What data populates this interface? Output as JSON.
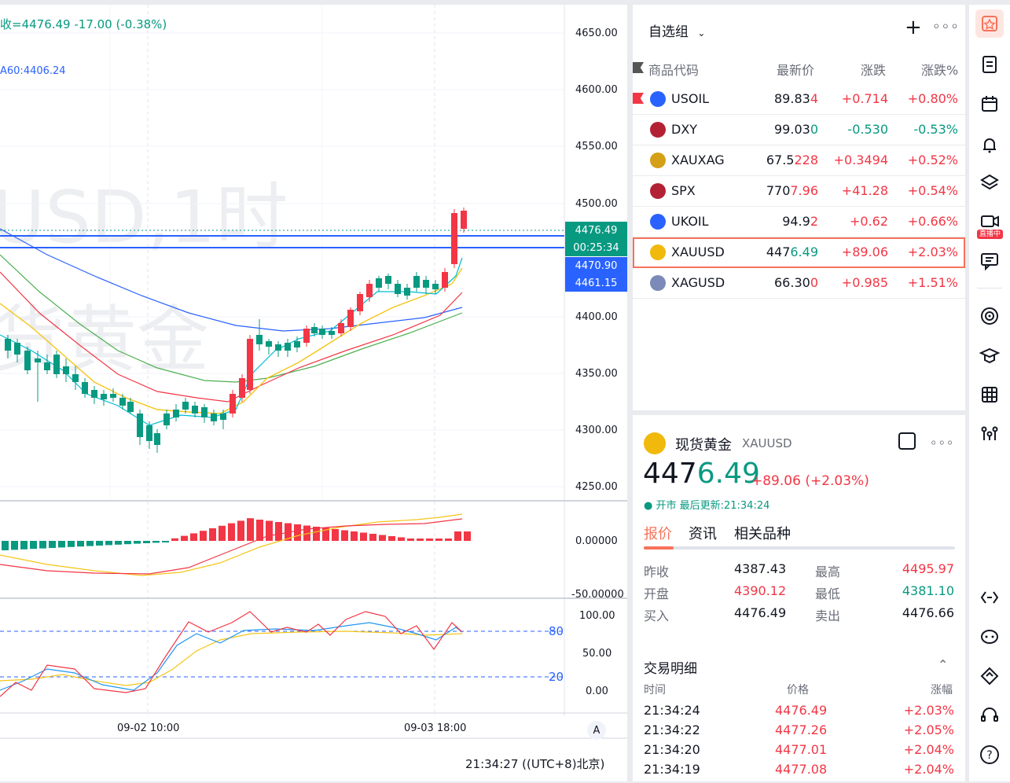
{
  "chart": {
    "legend_ohlc": "收=4476.49  -17.00 (-0.38%)",
    "legend_ma": "A60:4406.24",
    "watermark_line1": "USD,1时",
    "watermark_line2": "货黄金",
    "price_axis": [
      "4650.00",
      "4600.00",
      "4550.00",
      "4500.00",
      "4400.00",
      "4350.00",
      "4300.00",
      "4250.00"
    ],
    "tags": {
      "last": "4476.49",
      "countdown": "00:25:34",
      "line1": "4470.90",
      "line2": "4461.15"
    },
    "macd_axis": [
      "0.00000",
      "-50.00000"
    ],
    "kd_axis": [
      "100.00",
      "50.00",
      "0.00"
    ],
    "kd_levels": [
      "80",
      "20"
    ],
    "time_labels": [
      "09-02 10:00",
      "09-03 18:00"
    ],
    "auto_btn": "A",
    "clock": "21:34:27 ((UTC+8)北京)"
  },
  "watchlist": {
    "title": "自选组",
    "columns": [
      "商品代码",
      "最新价",
      "涨跌",
      "涨跌%"
    ],
    "rows": [
      {
        "symbol": "USOIL",
        "price_a": "89.83",
        "price_b": "4",
        "change": "+0.714",
        "pct": "+0.80%",
        "dir": "up",
        "icon": "#2962ff"
      },
      {
        "symbol": "DXY",
        "price_a": "99.03",
        "price_b": "0",
        "change": "-0.530",
        "pct": "-0.53%",
        "dir": "dn",
        "icon": "#b22234"
      },
      {
        "symbol": "XAUXAG",
        "price_a": "67.5",
        "price_b": "228",
        "change": "+0.3494",
        "pct": "+0.52%",
        "dir": "up",
        "icon": "#d4a017"
      },
      {
        "symbol": "SPX",
        "price_a": "770",
        "price_b": "7.96",
        "change": "+41.28",
        "pct": "+0.54%",
        "dir": "up",
        "icon": "#b22234"
      },
      {
        "symbol": "UKOIL",
        "price_a": "94.9",
        "price_b": "2",
        "change": "+0.62",
        "pct": "+0.66%",
        "dir": "up",
        "icon": "#2962ff"
      },
      {
        "symbol": "XAUUSD",
        "price_a": "447",
        "price_b": "6.49",
        "change": "+89.06",
        "pct": "+2.03%",
        "dir": "up",
        "icon": "#f0b90b"
      },
      {
        "symbol": "XAGUSD",
        "price_a": "66.30",
        "price_b": "0",
        "change": "+0.985",
        "pct": "+1.51%",
        "dir": "up",
        "icon": "#7b8ab8"
      }
    ]
  },
  "details": {
    "name": "现货黄金",
    "symbol": "XAUUSD",
    "price_a": "447",
    "price_b": "6.49",
    "change": "+89.06 (+2.03%)",
    "status": "● 开市 最后更新:21:34:24",
    "tabs": [
      "报价",
      "资讯",
      "相关品种"
    ],
    "stats": [
      {
        "l": "昨收",
        "v": "4387.43",
        "c": "#131722",
        "l2": "最高",
        "v2": "4495.97",
        "c2": "#f23645"
      },
      {
        "l": "开盘",
        "v": "4390.12",
        "c": "#f23645",
        "l2": "最低",
        "v2": "4381.10",
        "c2": "#089981"
      },
      {
        "l": "买入",
        "v": "4476.49",
        "c": "#131722",
        "l2": "卖出",
        "v2": "4476.66",
        "c2": "#131722"
      }
    ],
    "trades_title": "交易明细",
    "trades_cols": [
      "时间",
      "价格",
      "涨幅"
    ],
    "trades": [
      {
        "t": "21:34:24",
        "p": "4476.49",
        "c": "+2.03%"
      },
      {
        "t": "21:34:22",
        "p": "4477.26",
        "c": "+2.05%"
      },
      {
        "t": "21:34:20",
        "p": "4477.01",
        "c": "+2.04%"
      },
      {
        "t": "21:34:19",
        "p": "4477.08",
        "c": "+2.04%"
      }
    ]
  },
  "toolbar": {
    "live_badge": "直播中",
    "icons": [
      "watchlist-icon",
      "news-icon",
      "calendar-icon",
      "alert-bell-icon",
      "layers-icon",
      "video-live-icon",
      "chat-icon",
      "target-icon",
      "education-icon",
      "table-icon",
      "strategy-icon",
      "code-icon",
      "community-icon",
      "tag-icon",
      "headset-icon",
      "help-icon"
    ]
  }
}
